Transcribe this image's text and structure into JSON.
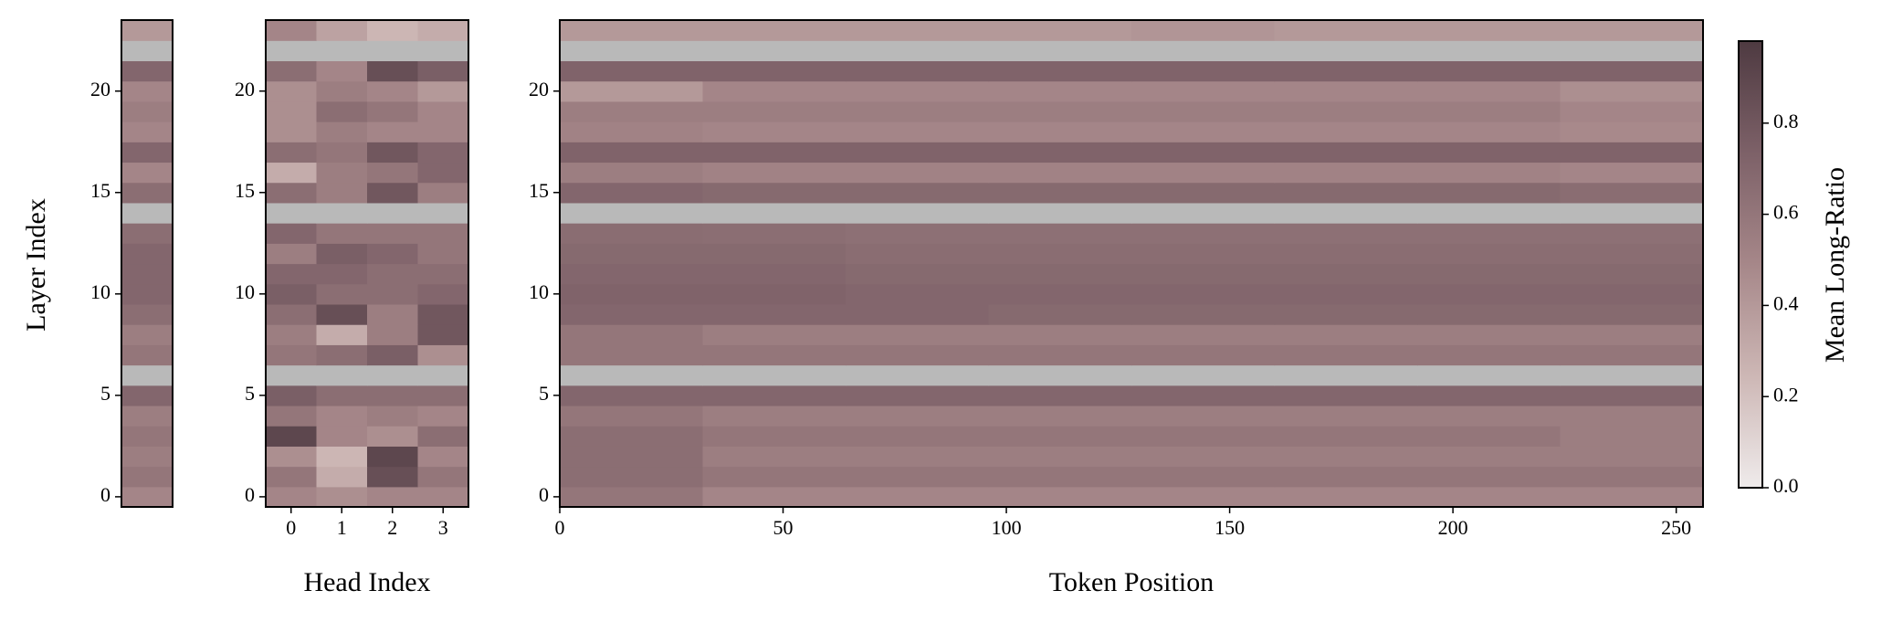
{
  "chart_data": [
    {
      "type": "heatmap",
      "ylabel": "Layer Index",
      "ylim": [
        -0.5,
        23.5
      ],
      "yticks": [
        0,
        5,
        10,
        15,
        20
      ],
      "null_color": "#b9b9b9",
      "values": [
        0.5,
        0.6,
        0.55,
        0.6,
        0.55,
        0.7,
        null,
        0.6,
        0.55,
        0.65,
        0.7,
        0.7,
        0.7,
        0.65,
        null,
        0.65,
        0.5,
        0.7,
        0.5,
        0.55,
        0.5,
        0.7,
        null,
        0.4
      ]
    },
    {
      "type": "heatmap",
      "xlabel": "Head Index",
      "xlim": [
        -0.5,
        3.5
      ],
      "xticks": [
        0,
        1,
        2,
        3
      ],
      "ylim": [
        -0.5,
        23.5
      ],
      "yticks": [
        0,
        5,
        10,
        15,
        20
      ],
      "null_color": "#b9b9b9",
      "values": [
        [
          0.5,
          0.45,
          0.5,
          0.5
        ],
        [
          0.6,
          0.3,
          0.85,
          0.6
        ],
        [
          0.45,
          0.25,
          0.9,
          0.5
        ],
        [
          0.9,
          0.5,
          0.45,
          0.65
        ],
        [
          0.6,
          0.5,
          0.55,
          0.5
        ],
        [
          0.75,
          0.65,
          0.65,
          0.65
        ],
        [
          null,
          null,
          null,
          null
        ],
        [
          0.6,
          0.65,
          0.75,
          0.45
        ],
        [
          0.55,
          0.3,
          0.55,
          0.8
        ],
        [
          0.65,
          0.85,
          0.55,
          0.8
        ],
        [
          0.75,
          0.65,
          0.65,
          0.7
        ],
        [
          0.7,
          0.7,
          0.65,
          0.65
        ],
        [
          0.55,
          0.75,
          0.7,
          0.6
        ],
        [
          0.7,
          0.6,
          0.6,
          0.6
        ],
        [
          null,
          null,
          null,
          null
        ],
        [
          0.65,
          0.55,
          0.8,
          0.55
        ],
        [
          0.3,
          0.55,
          0.6,
          0.7
        ],
        [
          0.65,
          0.6,
          0.8,
          0.7
        ],
        [
          0.45,
          0.55,
          0.5,
          0.5
        ],
        [
          0.45,
          0.65,
          0.6,
          0.5
        ],
        [
          0.45,
          0.55,
          0.5,
          0.4
        ],
        [
          0.65,
          0.5,
          0.85,
          0.75
        ],
        [
          null,
          null,
          null,
          null
        ],
        [
          0.5,
          0.35,
          0.25,
          0.3
        ]
      ]
    },
    {
      "type": "heatmap",
      "xlabel": "Token Position",
      "xlim": [
        0,
        256
      ],
      "xticks": [
        0,
        50,
        100,
        150,
        200,
        250
      ],
      "ylim": [
        -0.5,
        23.5
      ],
      "yticks": [
        0,
        5,
        10,
        15,
        20
      ],
      "null_color": "#b9b9b9",
      "x_bins": [
        0,
        32,
        64,
        96,
        128,
        160,
        192,
        224,
        256
      ],
      "values": [
        [
          0.6,
          0.5,
          0.5,
          0.5,
          0.5,
          0.5,
          0.5,
          0.5
        ],
        [
          0.65,
          0.6,
          0.6,
          0.6,
          0.6,
          0.6,
          0.6,
          0.6
        ],
        [
          0.65,
          0.55,
          0.55,
          0.55,
          0.55,
          0.55,
          0.55,
          0.55
        ],
        [
          0.65,
          0.6,
          0.6,
          0.6,
          0.6,
          0.6,
          0.6,
          0.55
        ],
        [
          0.6,
          0.55,
          0.55,
          0.55,
          0.55,
          0.55,
          0.55,
          0.55
        ],
        [
          0.7,
          0.7,
          0.7,
          0.7,
          0.7,
          0.7,
          0.7,
          0.7
        ],
        [
          null,
          null,
          null,
          null,
          null,
          null,
          null,
          null
        ],
        [
          0.6,
          0.6,
          0.6,
          0.6,
          0.6,
          0.6,
          0.6,
          0.6
        ],
        [
          0.6,
          0.55,
          0.55,
          0.55,
          0.55,
          0.55,
          0.55,
          0.55
        ],
        [
          0.7,
          0.7,
          0.7,
          0.68,
          0.68,
          0.68,
          0.68,
          0.68
        ],
        [
          0.72,
          0.72,
          0.7,
          0.7,
          0.7,
          0.7,
          0.7,
          0.7
        ],
        [
          0.7,
          0.7,
          0.68,
          0.68,
          0.68,
          0.68,
          0.68,
          0.68
        ],
        [
          0.68,
          0.68,
          0.66,
          0.66,
          0.66,
          0.66,
          0.66,
          0.66
        ],
        [
          0.66,
          0.65,
          0.64,
          0.64,
          0.64,
          0.64,
          0.64,
          0.64
        ],
        [
          null,
          null,
          null,
          null,
          null,
          null,
          null,
          null
        ],
        [
          0.7,
          0.68,
          0.68,
          0.68,
          0.68,
          0.68,
          0.68,
          0.66
        ],
        [
          0.55,
          0.52,
          0.52,
          0.52,
          0.52,
          0.52,
          0.52,
          0.5
        ],
        [
          0.72,
          0.72,
          0.72,
          0.72,
          0.72,
          0.72,
          0.72,
          0.72
        ],
        [
          0.52,
          0.5,
          0.5,
          0.5,
          0.5,
          0.5,
          0.5,
          0.48
        ],
        [
          0.55,
          0.55,
          0.55,
          0.55,
          0.55,
          0.55,
          0.55,
          0.5
        ],
        [
          0.4,
          0.5,
          0.5,
          0.5,
          0.5,
          0.5,
          0.5,
          0.45
        ],
        [
          0.72,
          0.72,
          0.72,
          0.72,
          0.72,
          0.72,
          0.72,
          0.72
        ],
        [
          null,
          null,
          null,
          null,
          null,
          null,
          null,
          null
        ],
        [
          0.4,
          0.4,
          0.4,
          0.4,
          0.42,
          0.4,
          0.4,
          0.4
        ]
      ],
      "colorbar_label": "Mean Long-Ratio",
      "zlim": [
        0,
        0.98
      ],
      "zticks": [
        {
          "value": 0,
          "label": "0.0"
        },
        {
          "value": 0.2,
          "label": "0.2"
        },
        {
          "value": 0.4,
          "label": "0.4"
        },
        {
          "value": 0.6,
          "label": "0.6"
        },
        {
          "value": 0.8,
          "label": "0.8"
        }
      ]
    }
  ]
}
